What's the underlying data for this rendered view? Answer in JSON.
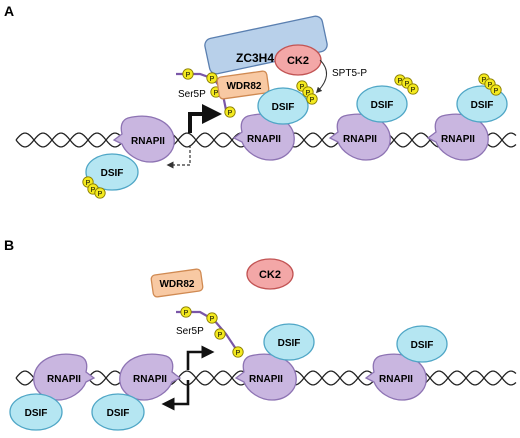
{
  "panels": {
    "a": {
      "letter": "A"
    },
    "b": {
      "letter": "B"
    }
  },
  "labels": {
    "zc3h4": "ZC3H4",
    "ck2": "CK2",
    "wdr82": "WDR82",
    "spt5p": "SPT5-P",
    "ser5p": "Ser5P",
    "dsif": "DSIF",
    "rnapii": "RNAPII",
    "p": "P"
  },
  "colors": {
    "rnapii_fill": "#c9b6e0",
    "rnapii_stroke": "#8d73b3",
    "dsif_fill": "#b5e6f2",
    "dsif_stroke": "#4fa6c6",
    "p_fill": "#f4ea1f",
    "p_stroke": "#8a7d00",
    "zc3h4_fill": "#b8d0ea",
    "zc3h4_stroke": "#5a7fb0",
    "ck2_fill": "#f3a7a7",
    "ck2_stroke": "#c25454",
    "wdr82_fill": "#f8c9a3",
    "wdr82_stroke": "#d08a52",
    "ctd": "#7a56a8",
    "dna": "#222222"
  }
}
